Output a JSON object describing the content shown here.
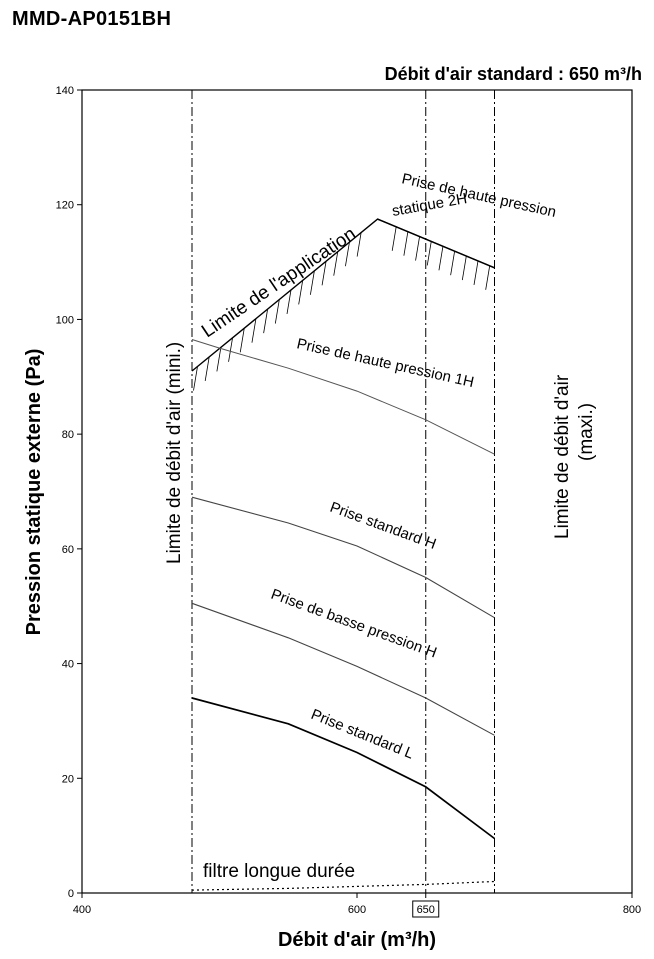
{
  "model": "MMD-AP0151BH",
  "chart_data": {
    "type": "line",
    "standard_flow_label": "Débit d'air standard : 650 m³/h",
    "standard_flow": 650,
    "xlabel": "Débit d'air (m³/h)",
    "ylabel": "Pression statique externe (Pa)",
    "xlim": [
      400,
      800
    ],
    "ylim": [
      0,
      140
    ],
    "x_ticks": [
      "400",
      "600",
      "650",
      "800"
    ],
    "y_ticks": [
      "0",
      "20",
      "40",
      "60",
      "80",
      "100",
      "120",
      "140"
    ],
    "min_flow": 480,
    "max_flow": 700,
    "min_flow_label": "Limite de débit d'air (mini.)",
    "max_flow_label": "Limite de débit d'air",
    "max_flow_label_2": "(maxi.)",
    "application_limit": {
      "label": "Limite de l'application",
      "points": [
        [
          480,
          91
        ],
        [
          615,
          117.5
        ],
        [
          700,
          109
        ]
      ]
    },
    "series": [
      {
        "name": "Prise de haute pression statique 2H",
        "label_lines": [
          "Prise de haute pression",
          "statique 2H"
        ],
        "x": [
          615,
          650,
          700
        ],
        "y": [
          117.5,
          114,
          109
        ]
      },
      {
        "name": "Prise de haute pression 1H",
        "x": [
          480,
          500,
          550,
          600,
          650,
          700
        ],
        "y": [
          96.5,
          95,
          91.5,
          87.5,
          82.5,
          76.5
        ]
      },
      {
        "name": "Prise standard H",
        "x": [
          480,
          550,
          600,
          650,
          700
        ],
        "y": [
          69,
          64.5,
          60.5,
          55,
          48
        ]
      },
      {
        "name": "Prise de basse pression H",
        "x": [
          480,
          550,
          600,
          650,
          700
        ],
        "y": [
          50.5,
          44.5,
          39.5,
          34,
          27.5
        ]
      },
      {
        "name": "Prise standard L",
        "x": [
          480,
          550,
          600,
          650,
          700
        ],
        "y": [
          34,
          29.5,
          24.5,
          18.5,
          9.5
        ]
      },
      {
        "name": "filtre longue durée",
        "x": [
          480,
          550,
          650,
          700
        ],
        "y": [
          0.5,
          0.8,
          1.5,
          2
        ]
      }
    ]
  }
}
